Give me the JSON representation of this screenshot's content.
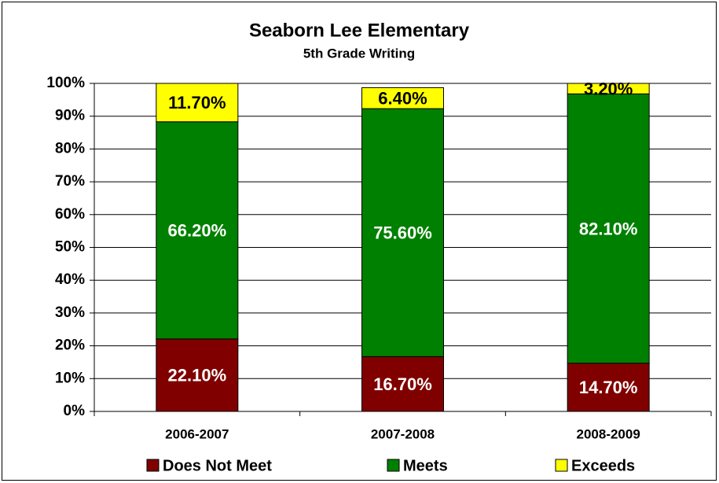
{
  "chart_data": {
    "type": "stacked_bar",
    "title": "Seaborn Lee Elementary",
    "subtitle": "5th Grade Writing",
    "categories": [
      "2006-2007",
      "2007-2008",
      "2008-2009"
    ],
    "series": [
      {
        "name": "Does Not Meet",
        "color": "#800000",
        "values": [
          22.1,
          16.7,
          14.7
        ],
        "value_labels": [
          "22.10%",
          "16.70%",
          "14.70%"
        ]
      },
      {
        "name": "Meets",
        "color": "#008000",
        "values": [
          66.2,
          75.6,
          82.1
        ],
        "value_labels": [
          "66.20%",
          "75.60%",
          "82.10%"
        ]
      },
      {
        "name": "Exceeds",
        "color": "#ffff00",
        "values": [
          11.7,
          6.4,
          3.2
        ],
        "value_labels": [
          "11.70%",
          "6.40%",
          "3.20%"
        ]
      }
    ],
    "ylim": [
      0,
      100
    ],
    "yticks": [
      {
        "value": 0,
        "label": "0%"
      },
      {
        "value": 10,
        "label": "10%"
      },
      {
        "value": 20,
        "label": "20%"
      },
      {
        "value": 30,
        "label": "30%"
      },
      {
        "value": 40,
        "label": "40%"
      },
      {
        "value": 50,
        "label": "50%"
      },
      {
        "value": 60,
        "label": "60%"
      },
      {
        "value": 70,
        "label": "70%"
      },
      {
        "value": 80,
        "label": "80%"
      },
      {
        "value": 90,
        "label": "90%"
      },
      {
        "value": 100,
        "label": "100%"
      }
    ],
    "grid": true,
    "legend": "bottom"
  }
}
